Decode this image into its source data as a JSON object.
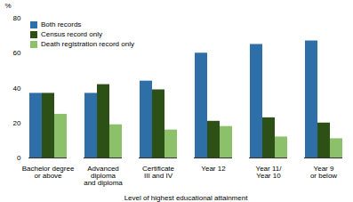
{
  "chart_data": {
    "type": "bar",
    "categories": [
      "Bachelor degree\nor above",
      "Advanced\ndiploma\nand diploma",
      "Certificate\nIII and IV",
      "Year 12",
      "Year 11/\nYear 10",
      "Year 9\nor below"
    ],
    "series": [
      {
        "name": "Both records",
        "color": "#2F6FA7",
        "values": [
          37,
          37,
          44,
          60,
          65,
          67
        ]
      },
      {
        "name": "Census record only",
        "color": "#2D5016",
        "values": [
          37,
          42,
          39,
          21,
          23,
          20
        ]
      },
      {
        "name": "Death registration record only",
        "color": "#8DC06A",
        "values": [
          25,
          19,
          16,
          18,
          12,
          11
        ]
      }
    ],
    "ylabel": "%",
    "xlabel": "Level of highest educational attainment",
    "ylim": [
      0,
      80
    ],
    "yticks": [
      0,
      20,
      40,
      60,
      80
    ],
    "grid": false,
    "legend": "upper left"
  }
}
